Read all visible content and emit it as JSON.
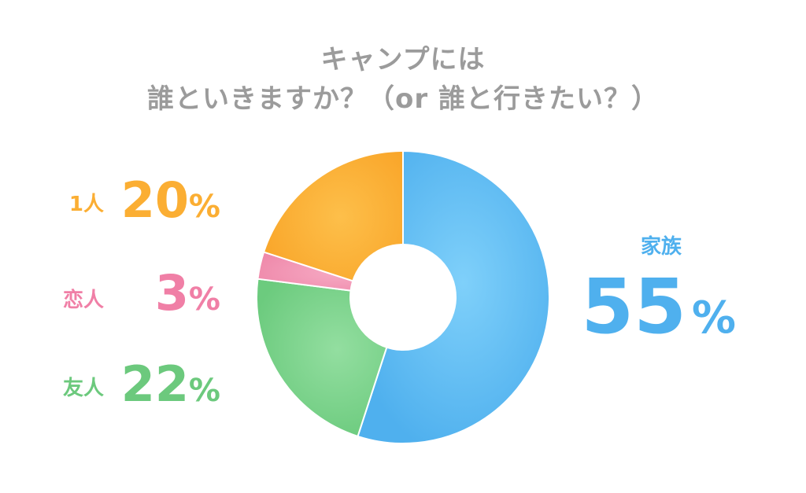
{
  "chart_data": {
    "type": "pie",
    "variant": "donut",
    "title": [
      "キャンプには",
      "誰といきますか？（or 誰と行きたい？）"
    ],
    "series": [
      {
        "name": "家族",
        "value": 55,
        "color": "#5bb8f0"
      },
      {
        "name": "友人",
        "value": 22,
        "color": "#76d187"
      },
      {
        "name": "恋人",
        "value": 3,
        "color": "#f292b2"
      },
      {
        "name": "1人",
        "value": 20,
        "color": "#fbae33"
      }
    ],
    "unit": "%",
    "title_color": "#9b9b9b"
  }
}
